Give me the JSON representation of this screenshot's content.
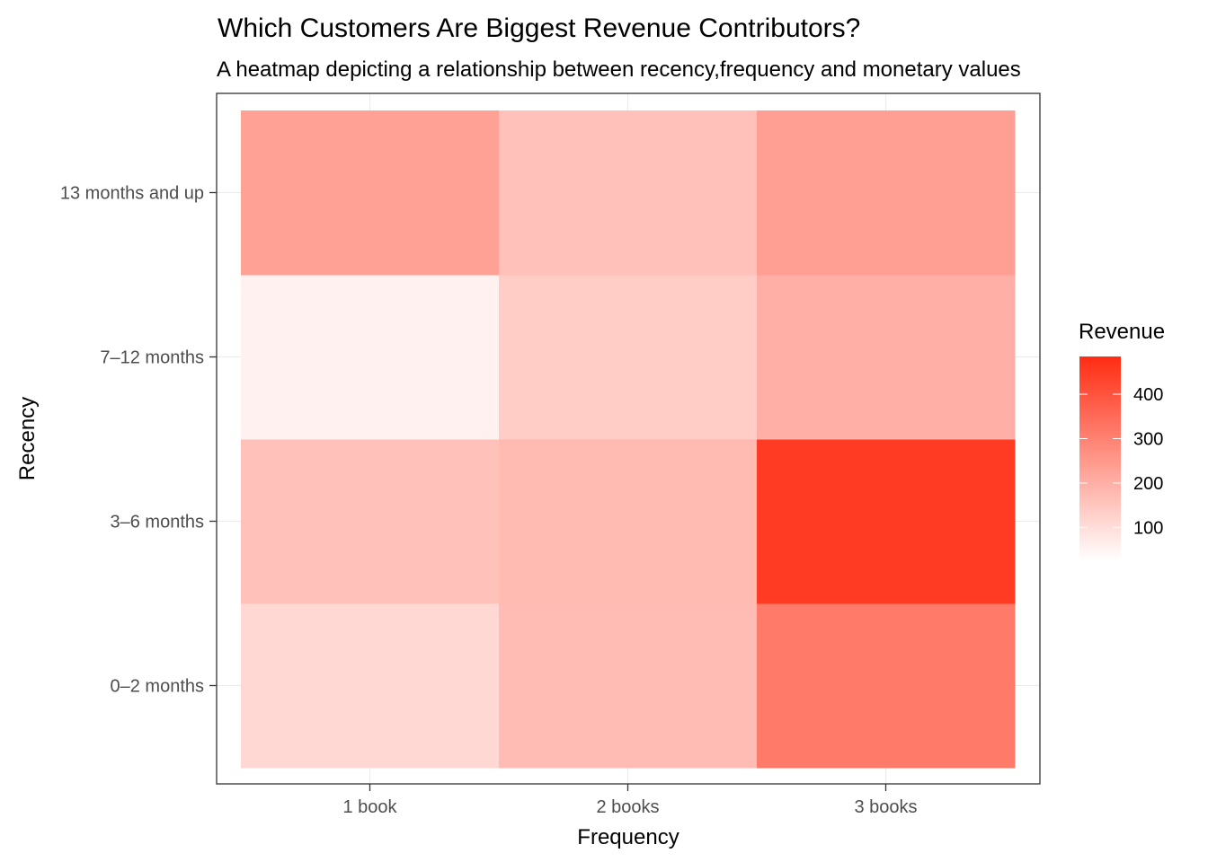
{
  "chart_data": {
    "type": "heatmap",
    "title": "Which Customers Are Biggest Revenue Contributors?",
    "subtitle": "A heatmap depicting a relationship between recency,frequency and monetary values",
    "xlabel": "Frequency",
    "ylabel": "Recency",
    "x_categories": [
      "1 book",
      "2 books",
      "3 books"
    ],
    "y_categories": [
      "0–2 months",
      "3–6 months",
      "7–12 months",
      "13 months and up"
    ],
    "cells": [
      {
        "x": "1 book",
        "y": "0–2 months",
        "value": 115
      },
      {
        "x": "2 books",
        "y": "0–2 months",
        "value": 175
      },
      {
        "x": "3 books",
        "y": "0–2 months",
        "value": 320
      },
      {
        "x": "1 book",
        "y": "3–6 months",
        "value": 165
      },
      {
        "x": "2 books",
        "y": "3–6 months",
        "value": 180
      },
      {
        "x": "3 books",
        "y": "3–6 months",
        "value": 455
      },
      {
        "x": "1 book",
        "y": "7–12 months",
        "value": 60
      },
      {
        "x": "2 books",
        "y": "7–12 months",
        "value": 140
      },
      {
        "x": "3 books",
        "y": "7–12 months",
        "value": 205
      },
      {
        "x": "1 book",
        "y": "13 months and up",
        "value": 235
      },
      {
        "x": "2 books",
        "y": "13 months and up",
        "value": 165
      },
      {
        "x": "3 books",
        "y": "13 months and up",
        "value": 240
      }
    ],
    "legend": {
      "title": "Revenue",
      "ticks": [
        100,
        200,
        300,
        400
      ],
      "range": [
        30,
        485
      ],
      "low_color": "#ffffff",
      "high_color": "#ff2e14",
      "placement": "right"
    },
    "grid": true
  }
}
